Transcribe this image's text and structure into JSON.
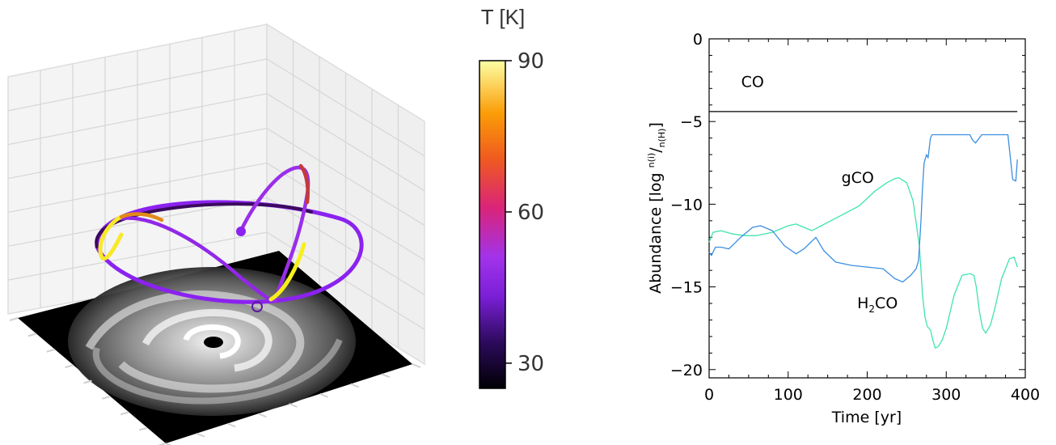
{
  "panel_left": {
    "colorbar": {
      "title": "T [K]",
      "ticks": [
        30,
        60,
        90
      ],
      "range": [
        25,
        90
      ],
      "colormap": [
        "#000004",
        "#2c0a5c",
        "#7a1fd6",
        "#a233ea",
        "#d9247a",
        "#ef5a1f",
        "#fb9d07",
        "#fcffa4"
      ]
    },
    "disk_color": "#000000",
    "track_note_colors": {
      "cold": "#8a2be2",
      "hot": "#ffff33"
    }
  },
  "chart_data": {
    "type": "line",
    "xlabel": "Time [yr]",
    "ylabel": "Abundance [log n(i)/n(H)]",
    "ylabel_parts": {
      "main": "Abundance [log ",
      "sup": "n(i)",
      "slash": "/",
      "sub": "n(H)",
      "close": "]"
    },
    "xlim": [
      0,
      400
    ],
    "ylim": [
      -20.5,
      0
    ],
    "xticks": [
      0,
      100,
      200,
      300,
      400
    ],
    "yticks": [
      0,
      -5,
      -10,
      -15,
      -20
    ],
    "annotations": [
      {
        "text": "CO",
        "x": 55,
        "y": -2.9
      },
      {
        "text": "gCO",
        "x": 188,
        "y": -8.7
      },
      {
        "text": "H2CO",
        "x": 213,
        "y": -16.3,
        "parts": {
          "a": "H",
          "sub": "2",
          "b": "CO"
        }
      }
    ],
    "series": [
      {
        "label": "CO",
        "color": "#000000",
        "x": [
          0,
          390
        ],
        "y": [
          -4.4,
          -4.4
        ]
      },
      {
        "label": "gCO",
        "color": "#3fe3b0",
        "x": [
          0,
          5,
          15,
          30,
          45,
          60,
          80,
          100,
          110,
          130,
          150,
          170,
          190,
          210,
          225,
          235,
          240,
          250,
          258,
          263,
          266,
          268,
          270,
          273,
          276,
          280,
          283,
          286,
          290,
          295,
          300,
          310,
          320,
          330,
          335,
          338,
          342,
          346,
          350,
          356,
          362,
          370,
          380,
          386,
          390
        ],
        "y": [
          -12.3,
          -11.7,
          -11.6,
          -11.8,
          -11.9,
          -11.9,
          -11.7,
          -11.3,
          -11.2,
          -11.6,
          -11.1,
          -10.6,
          -10.1,
          -9.2,
          -8.7,
          -8.45,
          -8.4,
          -8.7,
          -9.8,
          -11.5,
          -12.5,
          -14.0,
          -15.5,
          -16.8,
          -17.4,
          -17.6,
          -18.2,
          -18.7,
          -18.6,
          -18.2,
          -17.5,
          -15.5,
          -14.3,
          -14.2,
          -14.3,
          -15.0,
          -16.5,
          -17.5,
          -17.8,
          -17.3,
          -16.2,
          -14.5,
          -13.3,
          -13.2,
          -13.8
        ]
      },
      {
        "label": "H2CO",
        "color": "#3b8fe0",
        "x": [
          0,
          3,
          8,
          15,
          25,
          40,
          55,
          65,
          80,
          95,
          110,
          120,
          135,
          145,
          160,
          180,
          200,
          220,
          235,
          245,
          255,
          262,
          265,
          268,
          270,
          272,
          275,
          277,
          280,
          282,
          285,
          300,
          320,
          330,
          333,
          337,
          345,
          360,
          370,
          378,
          384,
          388,
          390
        ],
        "y": [
          -12.9,
          -13.1,
          -12.6,
          -12.6,
          -12.7,
          -12.0,
          -11.4,
          -11.3,
          -11.6,
          -12.5,
          -13.0,
          -12.7,
          -12.0,
          -12.8,
          -13.5,
          -13.7,
          -13.8,
          -13.9,
          -14.5,
          -14.7,
          -14.3,
          -13.9,
          -13.4,
          -11.0,
          -9.0,
          -7.5,
          -7.0,
          -7.2,
          -6.0,
          -5.8,
          -5.8,
          -5.8,
          -5.8,
          -5.8,
          -6.1,
          -6.3,
          -5.8,
          -5.8,
          -5.8,
          -5.8,
          -8.5,
          -8.6,
          -7.3
        ]
      }
    ]
  }
}
